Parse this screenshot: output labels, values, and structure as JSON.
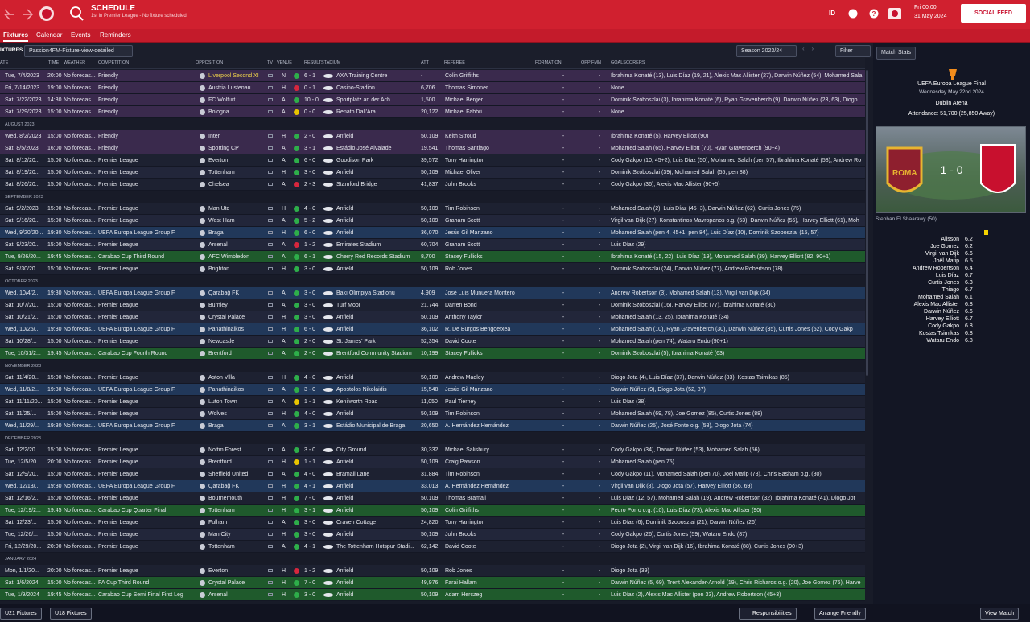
{
  "header": {
    "title": "SCHEDULE",
    "subtitle": "1st in Premier League - No fixture scheduled.",
    "user_badge": "ID",
    "time": "Fri 00:00",
    "date": "31 May 2024",
    "social": "SOCIAL FEED"
  },
  "tabs": [
    "Fixtures",
    "Calendar",
    "Events",
    "Reminders"
  ],
  "toolbar": {
    "label": "IXTURES",
    "view": "Passion4FM-Fixture-view-detailed",
    "season": "Season 2023/24",
    "filter": "Filter"
  },
  "columns": [
    "ATE",
    "TIME",
    "WEATHER",
    "COMPETITION",
    "OPPOSITION",
    "TV",
    "VENUE",
    "RESULT",
    "STADIUM",
    "ATT",
    "REFEREE",
    "FORMATION",
    "OPP FMN",
    "GOALSCORERS"
  ],
  "sections": [
    {
      "rows": [
        [
          "Tue, 7/4/2023",
          "20:00",
          "No forecas...",
          "Friendly",
          "Liverpool Second XI",
          "N",
          "6 - 1",
          "AXA Training Centre",
          "-",
          "Colin Griffiths",
          "-",
          "-",
          "Ibrahima Konaté (13), Luis Díaz (19, 21), Alexis Mac Allister (27), Darwin Núñez (54), Mohamed Sala",
          "#3a2a4d"
        ],
        [
          "Fri, 7/14/2023",
          "19:00",
          "No forecas...",
          "Friendly",
          "Austria Lustenau",
          "H",
          "0 - 1",
          "Casino-Stadion",
          "6,706",
          "Thomas Simoner",
          "-",
          "-",
          "None",
          "#3a2a4d"
        ],
        [
          "Sat, 7/22/2023",
          "14:30",
          "No forecas...",
          "Friendly",
          "FC Wolfurt",
          "A",
          "10 - 0",
          "Sportplatz an der Ach",
          "1,500",
          "Michael Berger",
          "-",
          "-",
          "Dominik Szoboszlai (3), Ibrahima Konaté (6), Ryan Gravenberch (9), Darwin Núñez (23, 63), Diogo",
          "#3a2a4d"
        ],
        [
          "Sat, 7/29/2023",
          "15:00",
          "No forecas...",
          "Friendly",
          "Bologna",
          "A",
          "0 - 0",
          "Renato Dall'Ara",
          "20,122",
          "Michael Fabbri",
          "-",
          "-",
          "None",
          "#3a2a4d"
        ]
      ]
    },
    {
      "month": "AUGUST 2023",
      "rows": [
        [
          "Wed, 8/2/2023",
          "15:00",
          "No forecas...",
          "Friendly",
          "Inter",
          "H",
          "2 - 0",
          "Anfield",
          "50,109",
          "Keith Stroud",
          "-",
          "-",
          "Ibrahima Konaté (5), Harvey Elliott (90)",
          "#3a2a4d"
        ],
        [
          "Sat, 8/5/2023",
          "16:00",
          "No forecas...",
          "Friendly",
          "Sporting CP",
          "A",
          "3 - 1",
          "Estádio José Alvalade",
          "19,541",
          "Thomas Santiago",
          "-",
          "-",
          "Mohamed Salah (65), Harvey Elliott (70), Ryan Gravenberch (90+4)",
          "#3a2a4d"
        ],
        [
          "Sat, 8/12/20...",
          "15:00",
          "No forecas...",
          "Premier League",
          "Everton",
          "A",
          "6 - 0",
          "Goodison Park",
          "39,572",
          "Tony Harrington",
          "-",
          "-",
          "Cody Gakpo (10, 45+2), Luis Díaz (50), Mohamed Salah (pen 57), Ibrahima Konaté (58), Andrew Ro",
          "#1d2131"
        ],
        [
          "Sat, 8/19/20...",
          "15:00",
          "No forecas...",
          "Premier League",
          "Tottenham",
          "H",
          "3 - 0",
          "Anfield",
          "50,109",
          "Michael Oliver",
          "-",
          "-",
          "Dominik Szoboszlai (39), Mohamed Salah (55, pen 88)",
          "#22263a"
        ],
        [
          "Sat, 8/26/20...",
          "15:00",
          "No forecas...",
          "Premier League",
          "Chelsea",
          "A",
          "2 - 3",
          "Stamford Bridge",
          "41,837",
          "John Brooks",
          "-",
          "-",
          "Cody Gakpo (36), Alexis Mac Allister (90+5)",
          "#1d2131"
        ]
      ]
    },
    {
      "month": "SEPTEMBER 2023",
      "rows": [
        [
          "Sat, 9/2/2023",
          "15:00",
          "No forecas...",
          "Premier League",
          "Man Utd",
          "H",
          "4 - 0",
          "Anfield",
          "50,109",
          "Tim Robinson",
          "-",
          "-",
          "Mohamed Salah (2), Luis Díaz (45+3), Darwin Núñez (62), Curtis Jones (75)",
          "#1d2131"
        ],
        [
          "Sat, 9/16/20...",
          "15:00",
          "No forecas...",
          "Premier League",
          "West Ham",
          "A",
          "5 - 2",
          "Anfield",
          "50,109",
          "Graham Scott",
          "-",
          "-",
          "Virgil van Dijk (27), Konstantinos Mavropanos o.g. (53), Darwin Núñez (55), Harvey Elliott (61), Moh",
          "#22263a"
        ],
        [
          "Wed, 9/20/20...",
          "19:30",
          "No forecas...",
          "UEFA Europa League Group F",
          "Braga",
          "H",
          "6 - 0",
          "Anfield",
          "36,070",
          "Jesús Gil Manzano",
          "-",
          "-",
          "Mohamed Salah (pen 4, 45+1, pen 84), Luis Díaz (10), Dominik Szoboszlai (15, 57)",
          "#21385a"
        ],
        [
          "Sat, 9/23/20...",
          "15:00",
          "No forecas...",
          "Premier League",
          "Arsenal",
          "A",
          "1 - 2",
          "Emirates Stadium",
          "60,704",
          "Graham Scott",
          "-",
          "-",
          "Luis Díaz (29)",
          "#22263a"
        ],
        [
          "Tue, 9/26/20...",
          "19:45",
          "No forecas...",
          "Carabao Cup Third Round",
          "AFC Wimbledon",
          "A",
          "6 - 1",
          "Cherry Red Records Stadium",
          "8,700",
          "Stacey Fullicks",
          "-",
          "-",
          "Ibrahima Konaté (15, 22), Luis Díaz (19), Mohamed Salah (39), Harvey Elliott (82, 90+1)",
          "#1f5a2c"
        ],
        [
          "Sat, 9/30/20...",
          "15:00",
          "No forecas...",
          "Premier League",
          "Brighton",
          "H",
          "3 - 0",
          "Anfield",
          "50,109",
          "Rob Jones",
          "-",
          "-",
          "Dominik Szoboszlai (24), Darwin Núñez (77), Andrew Robertson (78)",
          "#1d2131"
        ]
      ]
    },
    {
      "month": "OCTOBER 2023",
      "rows": [
        [
          "Wed, 10/4/2...",
          "19:30",
          "No forecas...",
          "UEFA Europa League Group F",
          "Qarabağ FK",
          "A",
          "3 - 0",
          "Bakı Olimpiya Stadionu",
          "4,909",
          "José Luis Munuera Montero",
          "-",
          "-",
          "Andrew Robertson (3), Mohamed Salah (13), Virgil van Dijk (34)",
          "#21385a"
        ],
        [
          "Sat, 10/7/20...",
          "15:00",
          "No forecas...",
          "Premier League",
          "Burnley",
          "A",
          "3 - 0",
          "Turf Moor",
          "21,744",
          "Darren Bond",
          "-",
          "-",
          "Dominik Szoboszlai (16), Harvey Elliott (77), Ibrahima Konaté (80)",
          "#1d2131"
        ],
        [
          "Sat, 10/21/2...",
          "15:00",
          "No forecas...",
          "Premier League",
          "Crystal Palace",
          "H",
          "3 - 0",
          "Anfield",
          "50,109",
          "Anthony Taylor",
          "-",
          "-",
          "Mohamed Salah (13, 25), Ibrahima Konaté (34)",
          "#22263a"
        ],
        [
          "Wed, 10/25/...",
          "19:30",
          "No forecas...",
          "UEFA Europa League Group F",
          "Panathinaikos",
          "H",
          "6 - 0",
          "Anfield",
          "36,102",
          "R. De Burgos Bengoetxea",
          "-",
          "-",
          "Mohamed Salah (10), Ryan Gravenberch (30), Darwin Núñez (35), Curtis Jones (52), Cody Gakp",
          "#21385a"
        ],
        [
          "Sat, 10/28/...",
          "15:00",
          "No forecas...",
          "Premier League",
          "Newcastle",
          "A",
          "2 - 0",
          "St. James' Park",
          "52,354",
          "David Coote",
          "-",
          "-",
          "Mohamed Salah (pen 74), Wataru Endo (90+1)",
          "#22263a"
        ],
        [
          "Tue, 10/31/2...",
          "19:45",
          "No forecas...",
          "Carabao Cup Fourth Round",
          "Brentford",
          "A",
          "2 - 0",
          "Brentford Community Stadium",
          "10,199",
          "Stacey Fullicks",
          "-",
          "-",
          "Dominik Szoboszlai (5), Ibrahima Konaté (63)",
          "#1f5a2c"
        ]
      ]
    },
    {
      "month": "NOVEMBER 2023",
      "rows": [
        [
          "Sat, 11/4/20...",
          "15:00",
          "No forecas...",
          "Premier League",
          "Aston Villa",
          "H",
          "4 - 0",
          "Anfield",
          "50,109",
          "Andrew Madley",
          "-",
          "-",
          "Diogo Jota (4), Luis Díaz (37), Darwin Núñez (83), Kostas Tsimikas (85)",
          "#1d2131"
        ],
        [
          "Wed, 11/8/2...",
          "19:30",
          "No forecas...",
          "UEFA Europa League Group F",
          "Panathinaikos",
          "A",
          "3 - 0",
          "Apostolos Nikolaidis",
          "15,548",
          "Jesús Gil Manzano",
          "-",
          "-",
          "Darwin Núñez (9), Diogo Jota (52, 87)",
          "#21385a"
        ],
        [
          "Sat, 11/11/20...",
          "15:00",
          "No forecas...",
          "Premier League",
          "Luton Town",
          "A",
          "1 - 1",
          "Kenilworth Road",
          "11,050",
          "Paul Tierney",
          "-",
          "-",
          "Luis Díaz (38)",
          "#1d2131"
        ],
        [
          "Sat, 11/25/...",
          "15:00",
          "No forecas...",
          "Premier League",
          "Wolves",
          "H",
          "4 - 0",
          "Anfield",
          "50,109",
          "Tim Robinson",
          "-",
          "-",
          "Mohamed Salah (69, 78), Joe Gomez (85), Curtis Jones (88)",
          "#22263a"
        ],
        [
          "Wed, 11/29/...",
          "19:30",
          "No forecas...",
          "UEFA Europa League Group F",
          "Braga",
          "A",
          "3 - 1",
          "Estádio Municipal de Braga",
          "20,650",
          "A. Hernández Hernández",
          "-",
          "-",
          "Darwin Núñez (25), José Fonte o.g. (58), Diogo Jota (74)",
          "#21385a"
        ]
      ]
    },
    {
      "month": "DECEMBER 2023",
      "rows": [
        [
          "Sat, 12/2/20...",
          "15:00",
          "No forecas...",
          "Premier League",
          "Nottm Forest",
          "A",
          "3 - 0",
          "City Ground",
          "30,332",
          "Michael Salisbury",
          "-",
          "-",
          "Cody Gakpo (34), Darwin Núñez (53), Mohamed Salah (56)",
          "#1d2131"
        ],
        [
          "Tue, 12/5/20...",
          "20:00",
          "No forecas...",
          "Premier League",
          "Brentford",
          "H",
          "1 - 1",
          "Anfield",
          "50,109",
          "Craig Pawson",
          "-",
          "-",
          "Mohamed Salah (pen 75)",
          "#22263a"
        ],
        [
          "Sat, 12/9/20...",
          "15:00",
          "No forecas...",
          "Premier League",
          "Sheffield United",
          "A",
          "4 - 0",
          "Bramall Lane",
          "31,884",
          "Tim Robinson",
          "-",
          "-",
          "Cody Gakpo (11), Mohamed Salah (pen 70), Joël Matip (78), Chris Basham o.g. (80)",
          "#1d2131"
        ],
        [
          "Wed, 12/13/...",
          "19:30",
          "No forecas...",
          "UEFA Europa League Group F",
          "Qarabağ FK",
          "H",
          "4 - 1",
          "Anfield",
          "33,013",
          "A. Hernández Hernández",
          "-",
          "-",
          "Virgil van Dijk (8), Diogo Jota (57), Harvey Elliott (66, 69)",
          "#21385a"
        ],
        [
          "Sat, 12/16/2...",
          "15:00",
          "No forecas...",
          "Premier League",
          "Bournemouth",
          "H",
          "7 - 0",
          "Anfield",
          "50,109",
          "Thomas Bramall",
          "-",
          "-",
          "Luis Díaz (12, 57), Mohamed Salah (19), Andrew Robertson (32), Ibrahima Konaté (41), Diogo Jot",
          "#1d2131"
        ],
        [
          "Tue, 12/19/2...",
          "19:45",
          "No forecas...",
          "Carabao Cup Quarter Final",
          "Tottenham",
          "H",
          "3 - 1",
          "Anfield",
          "50,109",
          "Colin Griffiths",
          "-",
          "-",
          "Pedro Porro o.g. (10), Luis Díaz (73), Alexis Mac Allister (90)",
          "#1f5a2c"
        ],
        [
          "Sat, 12/23/...",
          "15:00",
          "No forecas...",
          "Premier League",
          "Fulham",
          "A",
          "3 - 0",
          "Craven Cottage",
          "24,820",
          "Tony Harrington",
          "-",
          "-",
          "Luis Díaz (6), Dominik Szoboszlai (21), Darwin Núñez (26)",
          "#1d2131"
        ],
        [
          "Tue, 12/26/...",
          "15:00",
          "No forecas...",
          "Premier League",
          "Man City",
          "H",
          "3 - 0",
          "Anfield",
          "50,109",
          "John Brooks",
          "-",
          "-",
          "Cody Gakpo (26), Curtis Jones (59), Wataru Endo (87)",
          "#22263a"
        ],
        [
          "Fri, 12/29/20...",
          "20:00",
          "No forecas...",
          "Premier League",
          "Tottenham",
          "A",
          "4 - 1",
          "The Tottenham Hotspur Stadi...",
          "62,142",
          "David Coote",
          "-",
          "-",
          "Diogo Jota (2), Virgil van Dijk (16), Ibrahima Konaté (88), Curtis Jones (90+3)",
          "#1d2131"
        ]
      ]
    },
    {
      "month": "JANUARY 2024",
      "rows": [
        [
          "Mon, 1/1/20...",
          "20:00",
          "No forecas...",
          "Premier League",
          "Everton",
          "H",
          "1 - 2",
          "Anfield",
          "50,109",
          "Rob Jones",
          "-",
          "-",
          "Diogo Jota (39)",
          "#1d2131"
        ],
        [
          "Sat, 1/6/2024",
          "15:00",
          "No forecas...",
          "FA Cup Third Round",
          "Crystal Palace",
          "H",
          "7 - 0",
          "Anfield",
          "49,976",
          "Farai Hallam",
          "-",
          "-",
          "Darwin Núñez (5, 69), Trent Alexander-Arnold (19), Chris Richards o.g. (20), Joe Gomez (76), Harve",
          "#1f5a2c"
        ],
        [
          "Tue, 1/9/2024",
          "19:45",
          "No forecas...",
          "Carabao Cup Semi Final First Leg",
          "Arsenal",
          "H",
          "3 - 0",
          "Anfield",
          "50,109",
          "Adam Herczeg",
          "-",
          "-",
          "Luis Díaz (2), Alexis Mac Allister (pen 33), Andrew Robertson (45+3)",
          "#1f5a2c"
        ]
      ]
    }
  ],
  "side": {
    "button": "Match Stats",
    "competition": "UEFA Europa League Final",
    "date": "Wednesday May 22nd 2024",
    "stadium": "Dublin Arena",
    "attendance": "Attendance: 51,700 (25,850 Away)",
    "home_badge": "ROMA",
    "score": "1 - 0",
    "scorer": "Stephan El Shaarawy (50)",
    "ratings": [
      [
        "Alisson",
        6.2
      ],
      [
        "Joe Gomez",
        6.2
      ],
      [
        "Virgil van Dijk",
        6.6
      ],
      [
        "Joël Matip",
        6.5
      ],
      [
        "Andrew Robertson",
        6.4
      ],
      [
        "Luis Díaz",
        6.7
      ],
      [
        "Curtis Jones",
        6.3
      ],
      [
        "Thiago",
        6.7
      ],
      [
        "Mohamed Salah",
        6.1
      ],
      [
        "Alexis Mac Allister",
        6.8
      ],
      [
        "Darwin Núñez",
        6.6
      ],
      [
        "Harvey Elliott",
        6.7
      ],
      [
        "Cody Gakpo",
        6.8
      ],
      [
        "Kostas Tsimikas",
        6.8
      ],
      [
        "Wataru Endo",
        6.8
      ]
    ],
    "view_match": "View Match"
  },
  "footer": {
    "buttons": [
      "U21 Fixtures",
      "U18 Fixtures"
    ],
    "responsibilities": "Responsibilities",
    "arrange": "Arrange Friendly"
  }
}
